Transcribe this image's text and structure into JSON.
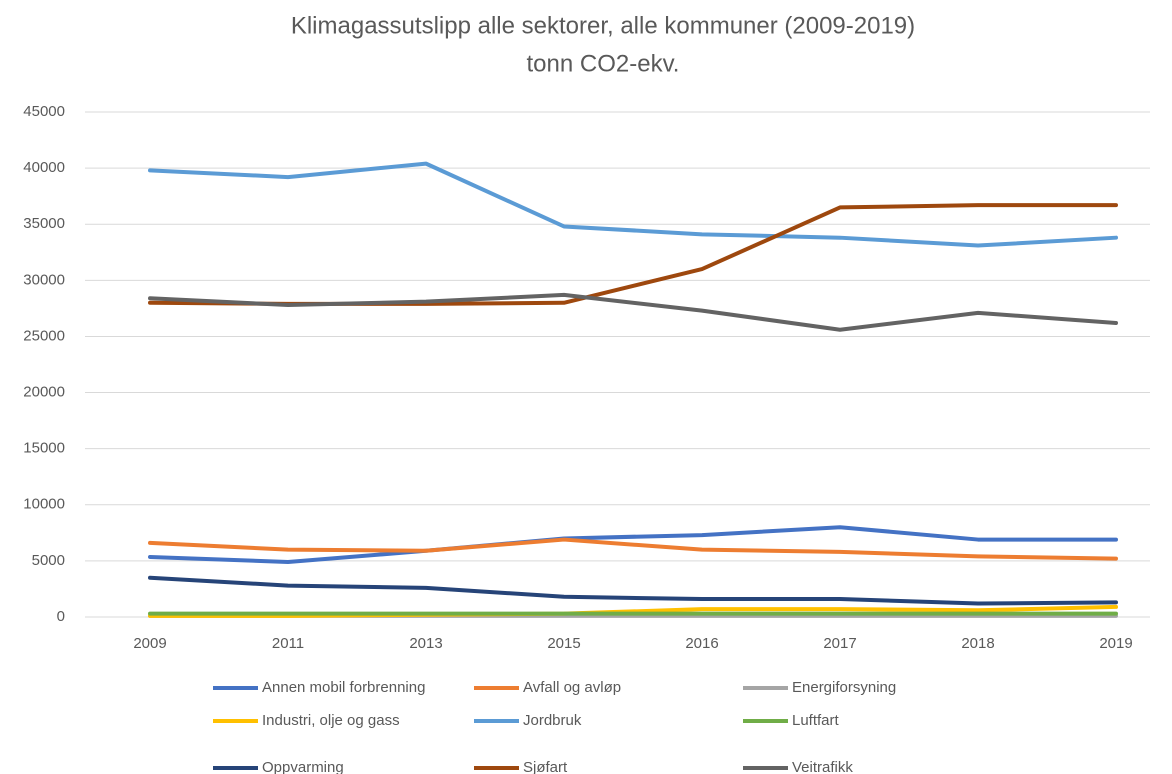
{
  "chart_data": {
    "type": "line",
    "title": "Klimagassutslipp alle sektorer, alle kommuner (2009-2019)",
    "subtitle": "tonn CO2-ekv.",
    "categories": [
      "2009",
      "2011",
      "2013",
      "2015",
      "2016",
      "2017",
      "2018",
      "2019"
    ],
    "ylim": [
      0,
      45000
    ],
    "yticks": [
      0,
      5000,
      10000,
      15000,
      20000,
      25000,
      30000,
      35000,
      40000,
      45000
    ],
    "grid": true,
    "legend": "bottom",
    "series": [
      {
        "name": "Annen mobil forbrenning",
        "color": "#4472c4",
        "values": [
          5350,
          4900,
          5900,
          7000,
          7300,
          8000,
          6900,
          6900
        ]
      },
      {
        "name": "Avfall og avløp",
        "color": "#ed7d31",
        "values": [
          6600,
          6000,
          5900,
          6900,
          6000,
          5800,
          5400,
          5200
        ]
      },
      {
        "name": "Energiforsyning",
        "color": "#a5a5a5",
        "values": [
          100,
          100,
          100,
          100,
          100,
          100,
          100,
          100
        ]
      },
      {
        "name": "Industri, olje og gass",
        "color": "#ffc000",
        "values": [
          100,
          100,
          200,
          300,
          700,
          700,
          600,
          900
        ]
      },
      {
        "name": "Jordbruk",
        "color": "#5b9bd5",
        "values": [
          39800,
          39200,
          40400,
          34800,
          34100,
          33800,
          33100,
          33800
        ]
      },
      {
        "name": "Luftfart",
        "color": "#70ad47",
        "values": [
          300,
          300,
          300,
          300,
          300,
          300,
          300,
          300
        ]
      },
      {
        "name": "Oppvarming",
        "color": "#264478",
        "values": [
          3500,
          2800,
          2600,
          1800,
          1600,
          1600,
          1200,
          1300
        ]
      },
      {
        "name": "Sjøfart",
        "color": "#9e480e",
        "values": [
          28000,
          27900,
          27900,
          28000,
          31000,
          36500,
          36700,
          36700
        ]
      },
      {
        "name": "Veitrafikk",
        "color": "#636363",
        "values": [
          28400,
          27800,
          28100,
          28700,
          27300,
          25600,
          27100,
          26200
        ]
      }
    ]
  }
}
